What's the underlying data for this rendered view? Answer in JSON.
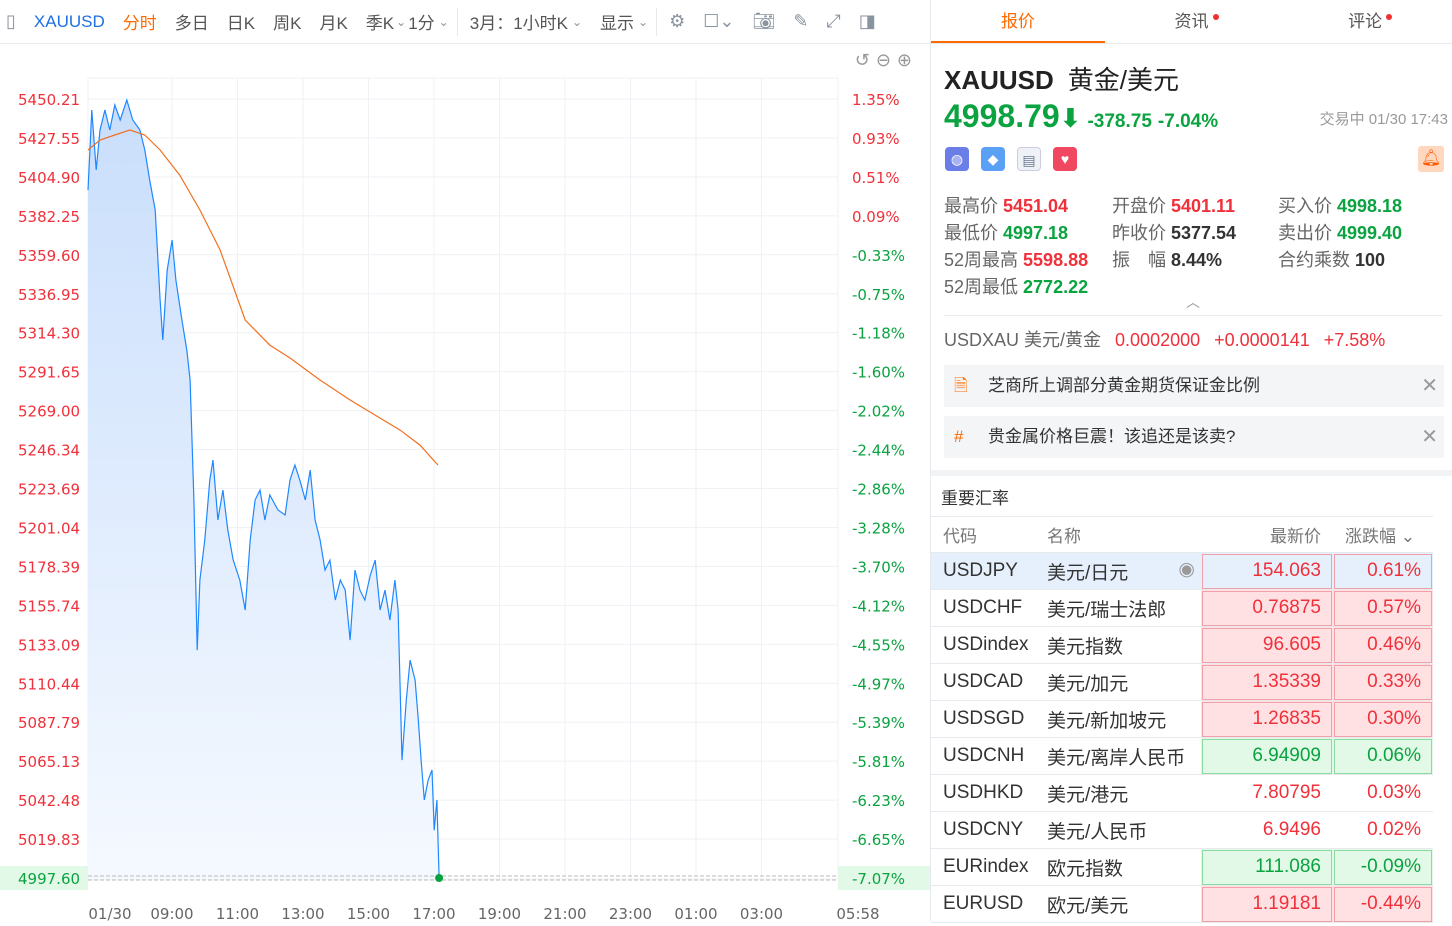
{
  "toolbar": {
    "symbol": "XAUUSD",
    "periods": [
      "分时",
      "多日",
      "日K",
      "周K",
      "月K",
      "季K"
    ],
    "interval": "1分",
    "range": "3月：1小时K",
    "display": "显示"
  },
  "chart_data": {
    "type": "line",
    "y_ticks": [
      "5450.21",
      "5427.55",
      "5404.90",
      "5382.25",
      "5359.60",
      "5336.95",
      "5314.30",
      "5291.65",
      "5269.00",
      "5246.34",
      "5223.69",
      "5201.04",
      "5178.39",
      "5155.74",
      "5133.09",
      "5110.44",
      "5087.79",
      "5065.13",
      "5042.48",
      "5019.83",
      "4997.60"
    ],
    "pct_ticks": [
      "1.35%",
      "0.93%",
      "0.51%",
      "0.09%",
      "-0.33%",
      "-0.75%",
      "-1.18%",
      "-1.60%",
      "-2.02%",
      "-2.44%",
      "-2.86%",
      "-3.28%",
      "-3.70%",
      "-4.12%",
      "-4.55%",
      "-4.97%",
      "-5.39%",
      "-5.81%",
      "-6.23%",
      "-6.65%",
      "-7.07%"
    ],
    "x_ticks": [
      "01/30",
      "09:00",
      "11:00",
      "13:00",
      "15:00",
      "17:00",
      "19:00",
      "21:00",
      "23:00",
      "01:00",
      "03:00",
      "05:58"
    ],
    "ylim": [
      4997.6,
      5450.21
    ],
    "xrange": [
      "07:00",
      "05:58"
    ],
    "last_price": 4997.6,
    "series": [
      {
        "color": "#1e88ff",
        "area": true,
        "points": [
          [
            "07:00",
            5397.3
          ],
          [
            "07:07",
            5443.8
          ],
          [
            "07:15",
            5409.0
          ],
          [
            "07:22",
            5432.2
          ],
          [
            "07:31",
            5443.8
          ],
          [
            "07:40",
            5432.2
          ],
          [
            "07:49",
            5446.7
          ],
          [
            "07:59",
            5438.0
          ],
          [
            "08:11",
            5449.6
          ],
          [
            "08:22",
            5438.0
          ],
          [
            "08:35",
            5432.2
          ],
          [
            "08:44",
            5420.6
          ],
          [
            "08:53",
            5403.1
          ],
          [
            "09:03",
            5385.7
          ],
          [
            "09:12",
            5333.4
          ],
          [
            "09:17",
            5310.2
          ],
          [
            "09:25",
            5350.8
          ],
          [
            "09:34",
            5368.3
          ],
          [
            "09:41",
            5345.0
          ],
          [
            "09:52",
            5321.8
          ],
          [
            "10:01",
            5304.4
          ],
          [
            "10:07",
            5286.9
          ],
          [
            "10:14",
            5217.2
          ],
          [
            "10:20",
            5130.0
          ],
          [
            "10:25",
            5170.7
          ],
          [
            "10:34",
            5194.0
          ],
          [
            "10:43",
            5228.8
          ],
          [
            "10:49",
            5240.4
          ],
          [
            "10:58",
            5205.6
          ],
          [
            "11:07",
            5223.0
          ],
          [
            "11:16",
            5199.8
          ],
          [
            "11:26",
            5182.3
          ],
          [
            "11:38",
            5170.7
          ],
          [
            "11:48",
            5153.3
          ],
          [
            "11:57",
            5194.0
          ],
          [
            "12:06",
            5217.2
          ],
          [
            "12:15",
            5223.0
          ],
          [
            "12:24",
            5205.6
          ],
          [
            "12:33",
            5220.1
          ],
          [
            "12:48",
            5211.4
          ],
          [
            "13:01",
            5208.5
          ],
          [
            "13:10",
            5228.8
          ],
          [
            "13:19",
            5237.5
          ],
          [
            "13:28",
            5228.8
          ],
          [
            "13:38",
            5217.2
          ],
          [
            "13:47",
            5234.6
          ],
          [
            "13:56",
            5205.6
          ],
          [
            "14:05",
            5194.0
          ],
          [
            "14:14",
            5176.5
          ],
          [
            "14:23",
            5182.3
          ],
          [
            "14:33",
            5159.1
          ],
          [
            "14:42",
            5170.7
          ],
          [
            "14:51",
            5164.9
          ],
          [
            "15:00",
            5135.8
          ],
          [
            "15:09",
            5176.5
          ],
          [
            "15:18",
            5164.9
          ],
          [
            "15:27",
            5159.1
          ],
          [
            "15:37",
            5173.6
          ],
          [
            "15:46",
            5182.3
          ],
          [
            "15:55",
            5153.3
          ],
          [
            "16:04",
            5164.9
          ],
          [
            "16:13",
            5147.5
          ],
          [
            "16:22",
            5170.7
          ],
          [
            "16:28",
            5153.3
          ],
          [
            "16:35",
            5066.1
          ],
          [
            "16:43",
            5101.0
          ],
          [
            "16:50",
            5124.2
          ],
          [
            "16:59",
            5112.6
          ],
          [
            "17:05",
            5089.4
          ],
          [
            "17:10",
            5066.1
          ],
          [
            "17:16",
            5042.9
          ],
          [
            "17:23",
            5054.6
          ],
          [
            "17:30",
            5060.3
          ],
          [
            "17:34",
            5025.4
          ],
          [
            "17:39",
            5042.9
          ],
          [
            "17:43",
            4997.6
          ]
        ]
      },
      {
        "color": "#f07020",
        "area": false,
        "points": [
          [
            "07:00",
            5420.6
          ],
          [
            "07:22",
            5426.4
          ],
          [
            "07:49",
            5429.3
          ],
          [
            "08:17",
            5432.2
          ],
          [
            "08:44",
            5429.3
          ],
          [
            "09:12",
            5420.6
          ],
          [
            "09:48",
            5406.0
          ],
          [
            "10:25",
            5385.7
          ],
          [
            "11:02",
            5362.5
          ],
          [
            "11:48",
            5321.8
          ],
          [
            "12:33",
            5307.2
          ],
          [
            "13:10",
            5299.7
          ],
          [
            "14:05",
            5286.9
          ],
          [
            "15:00",
            5275.3
          ],
          [
            "15:55",
            5264.8
          ],
          [
            "16:32",
            5257.8
          ],
          [
            "17:08",
            5249.1
          ],
          [
            "17:41",
            5237.5
          ]
        ]
      }
    ]
  },
  "panel": {
    "tabs": [
      "报价",
      "资讯",
      "评论"
    ],
    "symbol": "XAUUSD",
    "name": "黄金/美元",
    "price": "4998.79",
    "change": "-378.75",
    "change_pct": "-7.04%",
    "status": "交易中 01/30 17:43",
    "stats": [
      {
        "label": "最高价",
        "value": "5451.04",
        "color": "r"
      },
      {
        "label": "开盘价",
        "value": "5401.11",
        "color": "r"
      },
      {
        "label": "买入价",
        "value": "4998.18",
        "color": "g"
      },
      {
        "label": "最低价",
        "value": "4997.18",
        "color": "g"
      },
      {
        "label": "昨收价",
        "value": "5377.54",
        "color": "k"
      },
      {
        "label": "卖出价",
        "value": "4999.40",
        "color": "g"
      },
      {
        "label": "52周最高",
        "value": "5598.88",
        "color": "r"
      },
      {
        "label": "振　幅",
        "value": "8.44%",
        "color": "k"
      },
      {
        "label": "合约乘数",
        "value": "100",
        "color": "k"
      },
      {
        "label": "52周最低",
        "value": "2772.22",
        "color": "g"
      }
    ],
    "usdxau": {
      "label": "USDXAU 美元/黄金",
      "price": "0.0002000",
      "change": "+0.0000141",
      "pct": "+7.58%"
    },
    "news": [
      "芝商所上调部分黄金期货保证金比例",
      "贵金属价格巨震！该追还是该卖?"
    ]
  },
  "rates": {
    "title": "重要汇率",
    "headers": [
      "代码",
      "名称",
      "最新价",
      "涨跌幅"
    ],
    "rows": [
      [
        "USDJPY",
        "美元/日元",
        "154.063",
        "0.61%",
        "up"
      ],
      [
        "USDCHF",
        "美元/瑞士法郎",
        "0.76875",
        "0.57%",
        "up"
      ],
      [
        "USDindex",
        "美元指数",
        "96.605",
        "0.46%",
        "up"
      ],
      [
        "USDCAD",
        "美元/加元",
        "1.35339",
        "0.33%",
        "up"
      ],
      [
        "USDSGD",
        "美元/新加坡元",
        "1.26835",
        "0.30%",
        "up"
      ],
      [
        "USDCNH",
        "美元/离岸人民币",
        "6.94909",
        "0.06%",
        "dn"
      ],
      [
        "USDHKD",
        "美元/港元",
        "7.80795",
        "0.03%",
        "none"
      ],
      [
        "USDCNY",
        "美元/人民币",
        "6.9496",
        "0.02%",
        "none"
      ],
      [
        "EURindex",
        "欧元指数",
        "111.086",
        "-0.09%",
        "dn"
      ],
      [
        "EURUSD",
        "欧元/美元",
        "1.19181",
        "-0.44%",
        "up"
      ]
    ]
  }
}
